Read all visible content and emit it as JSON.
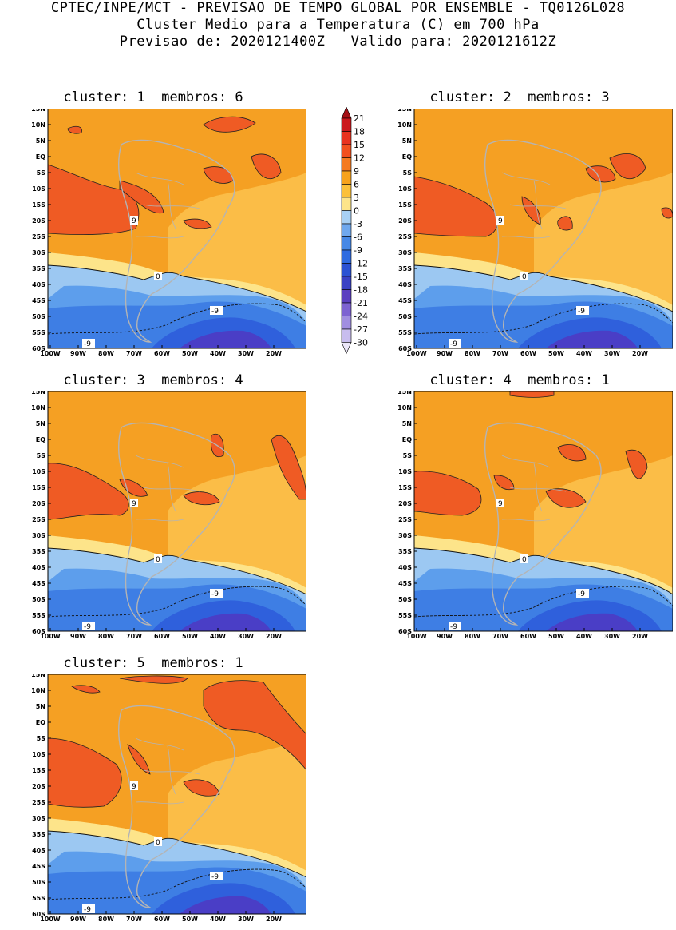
{
  "header": {
    "line1": "CPTEC/INPE/MCT - PREVISAO DE TEMPO GLOBAL POR ENSEMBLE - TQ0126L028",
    "line2": "Cluster Medio para a Temperatura (C) em 700 hPa",
    "line3": "Previsao de: 2020121400Z   Valido para: 2020121612Z"
  },
  "panels": [
    {
      "title": "cluster: 1  membros: 6",
      "variant": 1
    },
    {
      "title": "cluster: 2  membros: 3",
      "variant": 2
    },
    {
      "title": "cluster: 3  membros: 4",
      "variant": 3
    },
    {
      "title": "cluster: 4  membros: 1",
      "variant": 4
    },
    {
      "title": "cluster: 5  membros: 1",
      "variant": 5
    }
  ],
  "axes": {
    "lat_labels": [
      "15N",
      "10N",
      "5N",
      "EQ",
      "5S",
      "10S",
      "15S",
      "20S",
      "25S",
      "30S",
      "35S",
      "40S",
      "45S",
      "50S",
      "55S",
      "60S"
    ],
    "lon_labels": [
      "100W",
      "90W",
      "80W",
      "70W",
      "60W",
      "50W",
      "40W",
      "30W",
      "20W"
    ]
  },
  "contour_labels": {
    "warm": "9",
    "zero": "0",
    "cold": "-9"
  },
  "colorbar": {
    "levels": [
      "21",
      "18",
      "15",
      "12",
      "9",
      "6",
      "3",
      "0",
      "-3",
      "-6",
      "-9",
      "-12",
      "-15",
      "-18",
      "-21",
      "-24",
      "-27",
      "-30"
    ],
    "colors": [
      "#a50f15",
      "#cb181d",
      "#e8321f",
      "#f1501e",
      "#f47a20",
      "#f7a21c",
      "#fbc03a",
      "#fde48a",
      "#a8d0f4",
      "#6fa8ee",
      "#4688e6",
      "#2f6be0",
      "#2b52d3",
      "#3a41c4",
      "#5b3fc0",
      "#7d62d1",
      "#a18ee0",
      "#c8bdee",
      "#ebe6f8"
    ]
  },
  "palette": {
    "hot": "#ef5b24",
    "warm": "#f5a023",
    "mild": "#fbbd47",
    "light": "#fde48a",
    "cool": "#9cc8f2",
    "blue": "#5d9eec",
    "mid": "#3e7ee4",
    "deep": "#2f60dc",
    "violet": "#4a3ec6",
    "land": "#b4b4b4"
  }
}
